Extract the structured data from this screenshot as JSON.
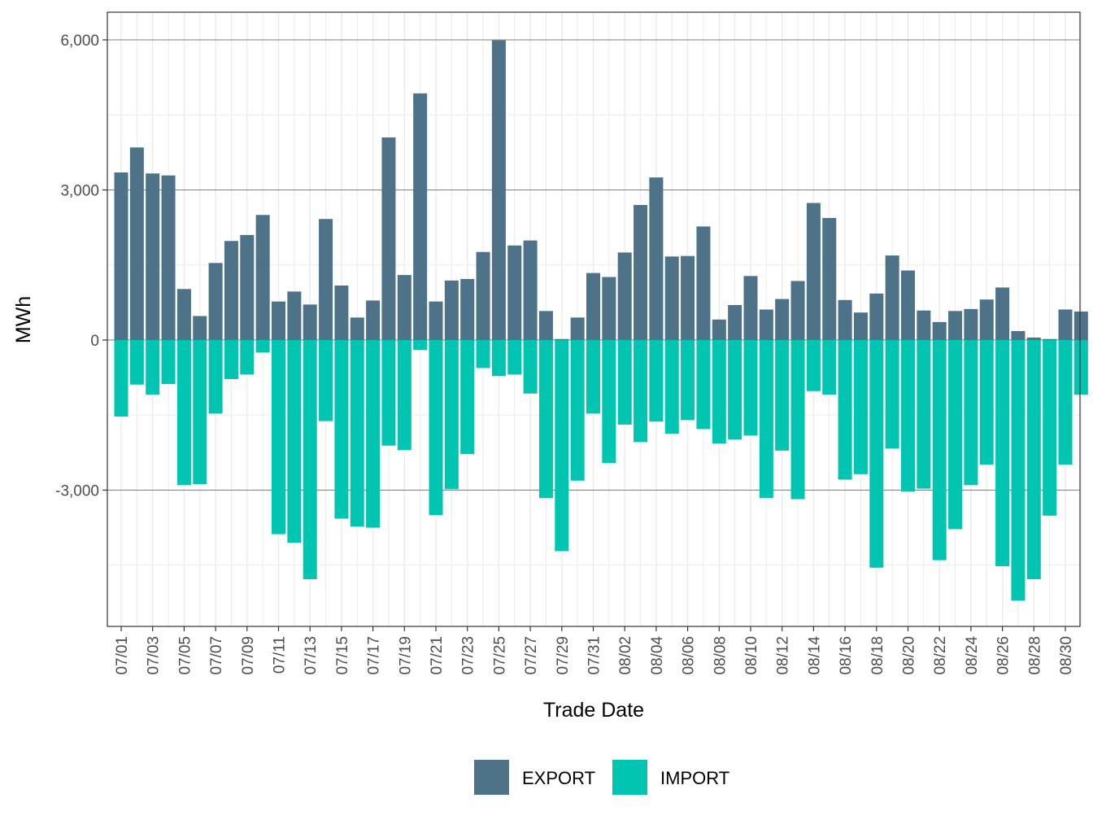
{
  "chart_data": {
    "type": "bar",
    "stacked": true,
    "xlabel": "Trade Date",
    "ylabel": "MWh",
    "ylim": [
      -5700,
      6550
    ],
    "yticks": [
      -3000,
      0,
      3000,
      6000
    ],
    "ytick_labels": [
      "-3,000",
      "0",
      "3,000",
      "6,000"
    ],
    "grid": true,
    "legend_position": "bottom",
    "categories": [
      "07/01",
      "07/02",
      "07/03",
      "07/04",
      "07/05",
      "07/06",
      "07/07",
      "07/08",
      "07/09",
      "07/10",
      "07/11",
      "07/12",
      "07/13",
      "07/14",
      "07/15",
      "07/16",
      "07/17",
      "07/18",
      "07/19",
      "07/20",
      "07/21",
      "07/22",
      "07/23",
      "07/24",
      "07/25",
      "07/26",
      "07/27",
      "07/28",
      "07/29",
      "07/30",
      "07/31",
      "08/01",
      "08/02",
      "08/03",
      "08/04",
      "08/05",
      "08/06",
      "08/07",
      "08/08",
      "08/09",
      "08/10",
      "08/11",
      "08/12",
      "08/13",
      "08/14",
      "08/15",
      "08/16",
      "08/17",
      "08/18",
      "08/19",
      "08/20",
      "08/21",
      "08/22",
      "08/23",
      "08/24",
      "08/25",
      "08/26",
      "08/27",
      "08/28",
      "08/29",
      "08/30",
      "08/31"
    ],
    "xtick_labels": [
      "07/01",
      "07/03",
      "07/05",
      "07/07",
      "07/09",
      "07/11",
      "07/13",
      "07/15",
      "07/17",
      "07/19",
      "07/21",
      "07/23",
      "07/25",
      "07/27",
      "07/29",
      "07/31",
      "08/02",
      "08/04",
      "08/06",
      "08/08",
      "08/10",
      "08/12",
      "08/14",
      "08/16",
      "08/18",
      "08/20",
      "08/22",
      "08/24",
      "08/26",
      "08/28",
      "08/30"
    ],
    "series": [
      {
        "name": "EXPORT",
        "color": "#4e7389",
        "values": [
          3350,
          3850,
          3330,
          3290,
          1020,
          480,
          1540,
          1980,
          2100,
          2500,
          770,
          970,
          710,
          2420,
          1090,
          450,
          790,
          4050,
          1300,
          4930,
          770,
          1190,
          1220,
          1760,
          5990,
          1890,
          1990,
          580,
          20,
          450,
          1340,
          1260,
          1750,
          2700,
          3250,
          1670,
          1680,
          2270,
          410,
          700,
          1280,
          610,
          820,
          1180,
          2740,
          2440,
          800,
          550,
          930,
          1690,
          1390,
          590,
          360,
          580,
          620,
          810,
          1050,
          180,
          50,
          20,
          610,
          570
        ]
      },
      {
        "name": "IMPORT",
        "color": "#00c5b0",
        "values": [
          -1530,
          -890,
          -1090,
          -880,
          -2900,
          -2880,
          -1470,
          -780,
          -690,
          -250,
          -3880,
          -4050,
          -4780,
          -1620,
          -3570,
          -3730,
          -3750,
          -2110,
          -2200,
          -200,
          -3500,
          -2980,
          -2280,
          -560,
          -720,
          -690,
          -1070,
          -3160,
          -4220,
          -2810,
          -1470,
          -2460,
          -1690,
          -2040,
          -1630,
          -1870,
          -1600,
          -1780,
          -2070,
          -1990,
          -1910,
          -3160,
          -2210,
          -3180,
          -1020,
          -1090,
          -2790,
          -2680,
          -4550,
          -2170,
          -3030,
          -2970,
          -4400,
          -3780,
          -2900,
          -2490,
          -4520,
          -5210,
          -4780,
          -3510,
          -2490,
          -1090
        ]
      }
    ]
  }
}
